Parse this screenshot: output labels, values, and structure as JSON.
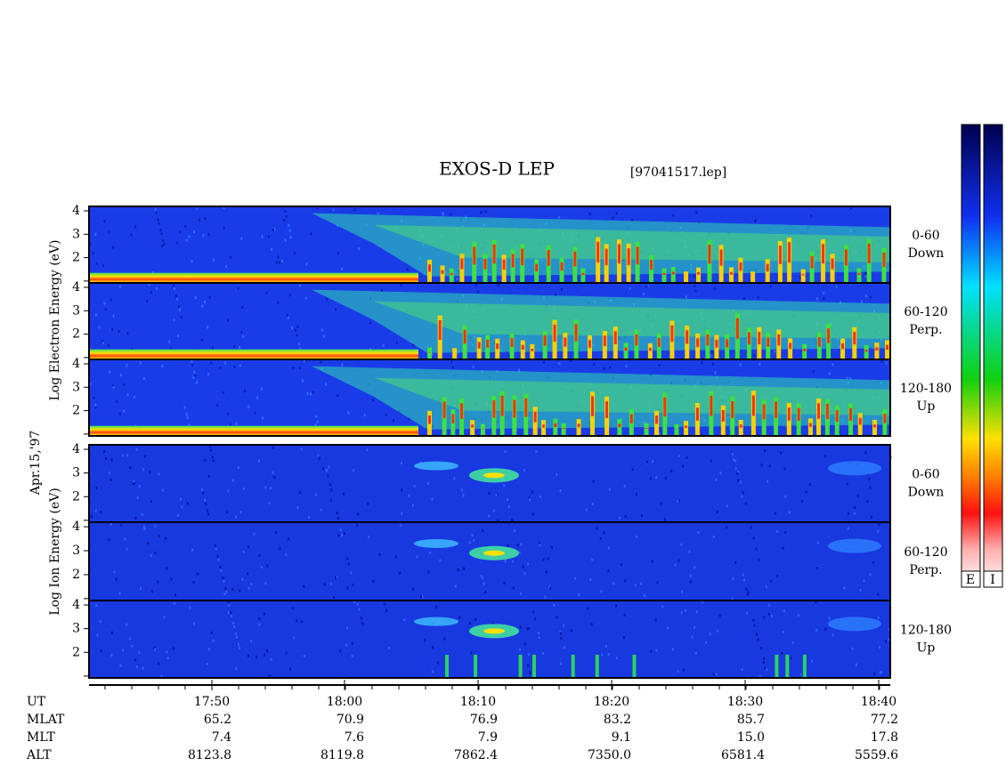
{
  "title": "EXOS-D LEP",
  "file": "[97041517.lep]",
  "date": "Apr.15,'97",
  "electron_label": "Log Electron Energy (eV)",
  "ion_label": "Log Ion Energy (eV)",
  "yticks": [
    2,
    3,
    4
  ],
  "panels": [
    {
      "angle": "0-60",
      "direction": "Down"
    },
    {
      "angle": "60-120",
      "direction": "Perp."
    },
    {
      "angle": "120-180",
      "direction": "Up"
    },
    {
      "angle": "0-60",
      "direction": "Down"
    },
    {
      "angle": "60-120",
      "direction": "Perp."
    },
    {
      "angle": "120-180",
      "direction": "Up"
    }
  ],
  "time_axis": {
    "label": "UT",
    "ticks": [
      "17:50",
      "18:00",
      "18:10",
      "18:20",
      "18:30",
      "18:40"
    ]
  },
  "rows": [
    {
      "label": "MLAT",
      "values": [
        "65.2",
        "70.9",
        "76.9",
        "83.2",
        "85.7",
        "77.2"
      ]
    },
    {
      "label": "MLT",
      "values": [
        "7.4",
        "7.6",
        "7.9",
        "9.1",
        "15.0",
        "17.8"
      ]
    },
    {
      "label": "ALT",
      "values": [
        "8123.8",
        "8119.8",
        "7862.4",
        "7350.0",
        "6581.4",
        "5559.6"
      ]
    }
  ],
  "colorbar": {
    "labels": [
      "E",
      "I"
    ]
  }
}
